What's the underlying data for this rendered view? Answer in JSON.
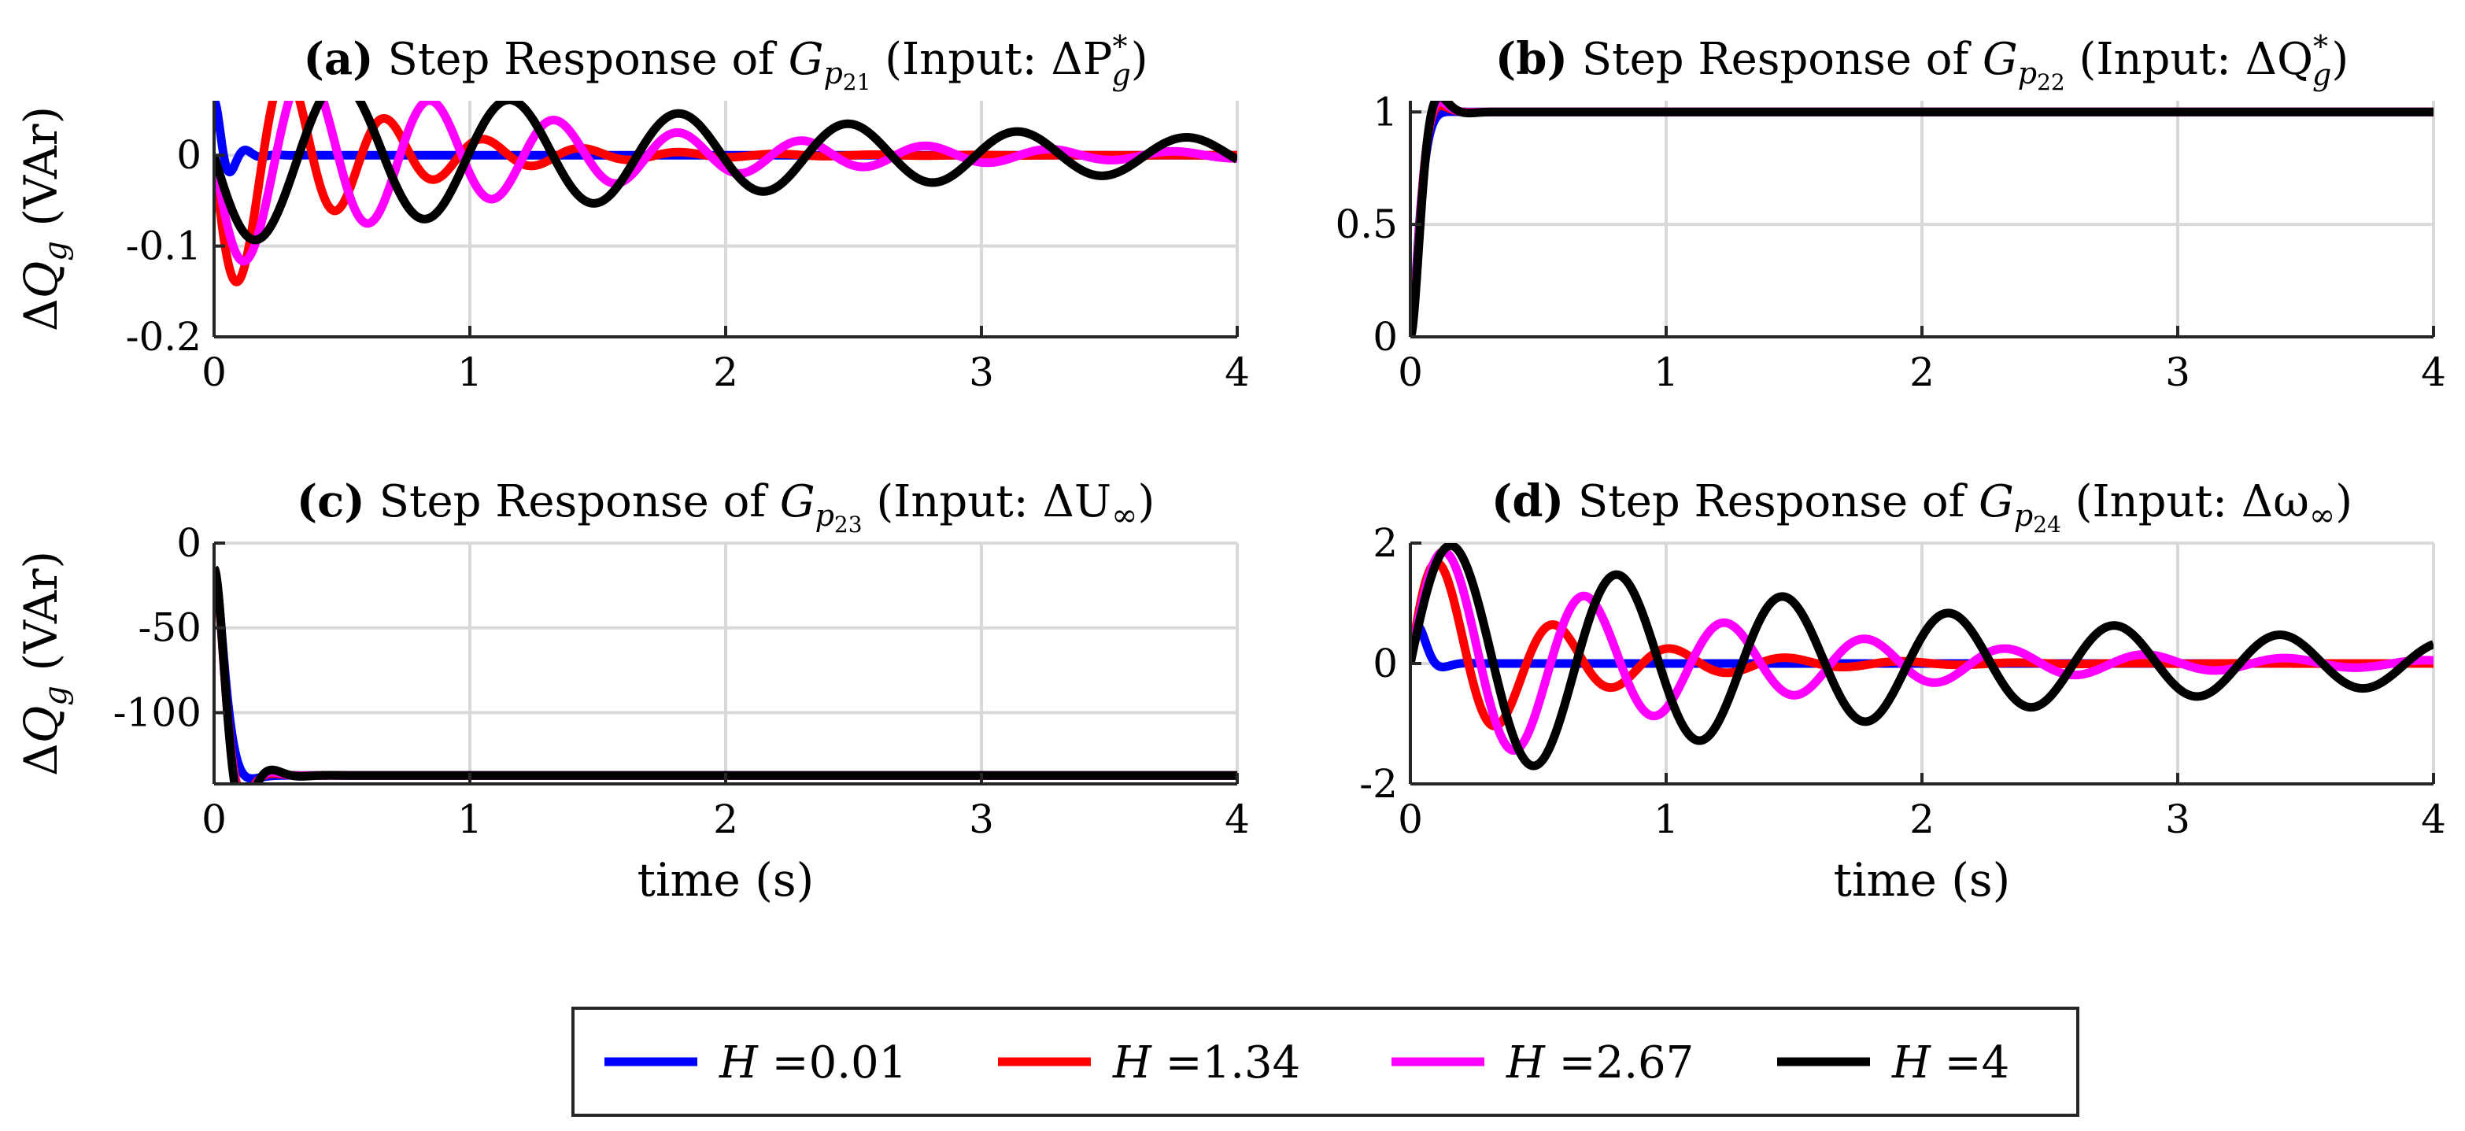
{
  "chart_data": [
    {
      "type": "line",
      "panel_label": "(a)",
      "title_prefix": "Step Response of",
      "symbol": "G",
      "subscript": "p",
      "subsub": "21",
      "input_text": "(Input: ΔP",
      "input_sup": "*",
      "input_sub": "g",
      "input_close": ")",
      "ylabel": "ΔQ_g (VAr)",
      "ylabel_main": "ΔQ",
      "ylabel_sub": "g",
      "ylabel_unit": "(VAr)",
      "xlabel": "",
      "xlim": [
        0,
        4
      ],
      "ylim": [
        -0.2,
        0.06
      ],
      "xticks": [
        0,
        1,
        2,
        3,
        4
      ],
      "xtick_labels": [
        "0",
        "1",
        "2",
        "3",
        "4"
      ],
      "yticks": [
        -0.2,
        -0.1,
        0
      ],
      "ytick_labels": [
        "-0.2",
        "-0.1",
        "0"
      ],
      "final": 0,
      "series": [
        {
          "name": "H =0.01",
          "color": "#0000ff",
          "start": 0.06,
          "amp": -0.225,
          "omega": 55,
          "zeta": 0.35,
          "phi": 0
        },
        {
          "name": "H =1.34",
          "color": "#ff0000",
          "start": 0,
          "amp": -0.17,
          "omega": 16.5,
          "zeta": 0.13,
          "phi": 0
        },
        {
          "name": "H =2.67",
          "color": "#ff00ff",
          "start": 0,
          "amp": -0.13,
          "omega": 13,
          "zeta": 0.07,
          "phi": 0
        },
        {
          "name": "H =4",
          "color": "#000000",
          "start": 0,
          "amp": -0.1,
          "omega": 9.5,
          "zeta": 0.045,
          "phi": 0
        }
      ]
    },
    {
      "type": "line",
      "panel_label": "(b)",
      "title_prefix": "Step Response of",
      "symbol": "G",
      "subscript": "p",
      "subsub": "22",
      "input_text": "(Input: ΔQ",
      "input_sup": "*",
      "input_sub": "g",
      "input_close": ")",
      "ylabel": "",
      "xlabel": "",
      "xlim": [
        0,
        4
      ],
      "ylim": [
        0,
        1.05
      ],
      "xticks": [
        0,
        1,
        2,
        3,
        4
      ],
      "xtick_labels": [
        "0",
        "1",
        "2",
        "3",
        "4"
      ],
      "yticks": [
        0,
        0.5,
        1
      ],
      "ytick_labels": [
        "0",
        "0.5",
        "1"
      ],
      "final": 1,
      "series": [
        {
          "name": "H =0.01",
          "color": "#0000ff",
          "start": 0,
          "amp": -1.0,
          "omega": 45,
          "zeta": 0.9,
          "phi": 0
        },
        {
          "name": "H =1.34",
          "color": "#ff0000",
          "start": 0,
          "amp": -1.0,
          "omega": 40,
          "zeta": 0.75,
          "phi": 0
        },
        {
          "name": "H =2.67",
          "color": "#ff00ff",
          "start": 0,
          "amp": -1.0,
          "omega": 38,
          "zeta": 0.7,
          "phi": 0
        },
        {
          "name": "H =4",
          "color": "#000000",
          "start": 0,
          "amp": -1.0,
          "omega": 36,
          "zeta": 0.65,
          "phi": 0
        }
      ]
    },
    {
      "type": "line",
      "panel_label": "(c)",
      "title_prefix": "Step Response of",
      "symbol": "G",
      "subscript": "p",
      "subsub": "23",
      "input_text": "(Input: ΔU",
      "input_sup": "",
      "input_sub": "∞",
      "input_close": ")",
      "ylabel": "ΔQ_g (VAr)",
      "ylabel_main": "ΔQ",
      "ylabel_sub": "g",
      "ylabel_unit": "(VAr)",
      "xlabel": "time (s)",
      "xlim": [
        0,
        4
      ],
      "ylim": [
        -142,
        0
      ],
      "xticks": [
        0,
        1,
        2,
        3,
        4
      ],
      "xtick_labels": [
        "0",
        "1",
        "2",
        "3",
        "4"
      ],
      "yticks": [
        -100,
        -50,
        0
      ],
      "ytick_labels": [
        "-100",
        "-50",
        "0"
      ],
      "final": -137,
      "series": [
        {
          "name": "H =0.01",
          "color": "#0000ff",
          "start": -15,
          "amp": 122,
          "omega": 35,
          "zeta": 0.8,
          "phi": 0
        },
        {
          "name": "H =1.34",
          "color": "#ff0000",
          "start": -15,
          "amp": 122,
          "omega": 34,
          "zeta": 0.6,
          "phi": 0
        },
        {
          "name": "H =2.67",
          "color": "#ff00ff",
          "start": -15,
          "amp": 122,
          "omega": 33,
          "zeta": 0.55,
          "phi": 0
        },
        {
          "name": "H =4",
          "color": "#000000",
          "start": -15,
          "amp": 122,
          "omega": 32,
          "zeta": 0.5,
          "phi": 0
        }
      ]
    },
    {
      "type": "line",
      "panel_label": "(d)",
      "title_prefix": "Step Response of",
      "symbol": "G",
      "subscript": "p",
      "subsub": "24",
      "input_text": "(Input: Δω",
      "input_sup": "",
      "input_sub": "∞",
      "input_close": ")",
      "ylabel": "",
      "xlabel": "time (s)",
      "xlim": [
        0,
        4
      ],
      "ylim": [
        -2,
        2
      ],
      "xticks": [
        0,
        1,
        2,
        3,
        4
      ],
      "xtick_labels": [
        "0",
        "1",
        "2",
        "3",
        "4"
      ],
      "yticks": [
        -2,
        0,
        2
      ],
      "ytick_labels": [
        "-2",
        "0",
        "2"
      ],
      "final": 0,
      "series": [
        {
          "name": "H =0.01",
          "color": "#0000ff",
          "start": 0,
          "amp": 1.55,
          "omega": 40,
          "zeta": 0.6,
          "phi": 0
        },
        {
          "name": "H =1.34",
          "color": "#ff0000",
          "start": 0,
          "amp": 2.1,
          "omega": 14,
          "zeta": 0.15,
          "phi": 0
        },
        {
          "name": "H =2.67",
          "color": "#ff00ff",
          "start": 0,
          "amp": 2.1,
          "omega": 11.5,
          "zeta": 0.08,
          "phi": 0
        },
        {
          "name": "H =4",
          "color": "#000000",
          "start": 0,
          "amp": 2.1,
          "omega": 9.7,
          "zeta": 0.045,
          "phi": 0
        }
      ]
    }
  ],
  "legend": {
    "items": [
      {
        "var": "H",
        "value": "=0.01",
        "color": "#0000ff"
      },
      {
        "var": "H",
        "value": "=1.34",
        "color": "#ff0000"
      },
      {
        "var": "H",
        "value": "=2.67",
        "color": "#ff00ff"
      },
      {
        "var": "H",
        "value": "=4",
        "color": "#000000"
      }
    ]
  }
}
